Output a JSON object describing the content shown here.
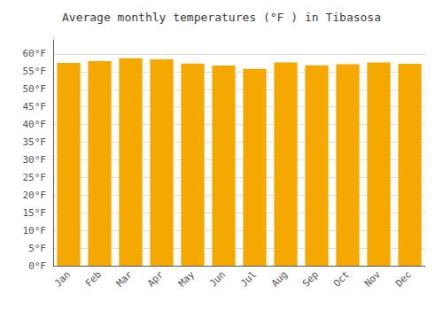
{
  "chart_data": {
    "type": "bar",
    "title": "Average monthly temperatures (°F ) in Tibasosa",
    "categories": [
      "Jan",
      "Feb",
      "Mar",
      "Apr",
      "May",
      "Jun",
      "Jul",
      "Aug",
      "Sep",
      "Oct",
      "Nov",
      "Dec"
    ],
    "values": [
      57.5,
      58.0,
      58.8,
      58.5,
      57.3,
      56.7,
      55.8,
      57.6,
      56.8,
      57.1,
      57.6,
      57.2
    ],
    "color": "#F5A800",
    "ylim": [
      0,
      64
    ],
    "yticks": [
      {
        "value": 0,
        "label": "0°F"
      },
      {
        "value": 5,
        "label": "5°F"
      },
      {
        "value": 10,
        "label": "10°F"
      },
      {
        "value": 15,
        "label": "15°F"
      },
      {
        "value": 20,
        "label": "20°F"
      },
      {
        "value": 25,
        "label": "25°F"
      },
      {
        "value": 30,
        "label": "30°F"
      },
      {
        "value": 35,
        "label": "35°F"
      },
      {
        "value": 40,
        "label": "40°F"
      },
      {
        "value": 45,
        "label": "45°F"
      },
      {
        "value": 50,
        "label": "50°F"
      },
      {
        "value": 55,
        "label": "55°F"
      },
      {
        "value": 60,
        "label": "60°F"
      }
    ],
    "grid": true
  }
}
